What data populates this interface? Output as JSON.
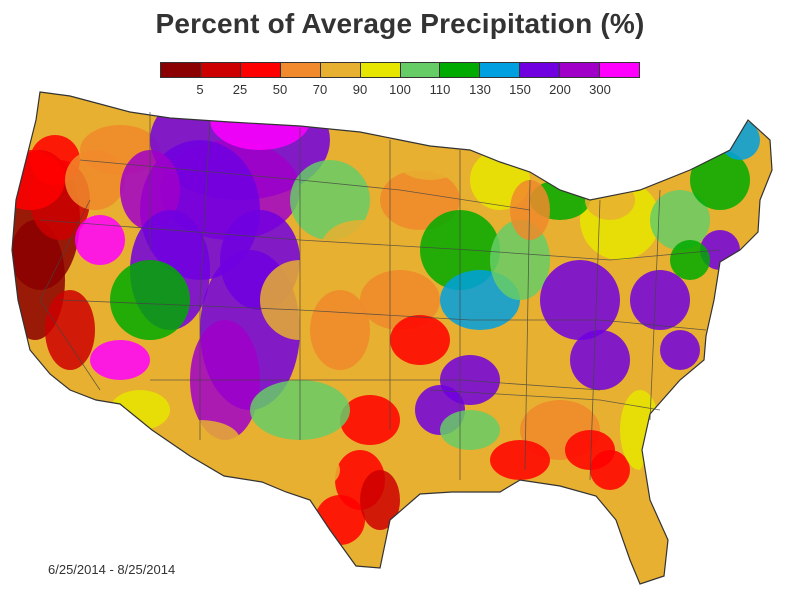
{
  "title": "Percent of Average Precipitation (%)",
  "legend": {
    "colors": [
      "#8b0000",
      "#cc0000",
      "#ff0000",
      "#f08a2c",
      "#e8b030",
      "#e6e600",
      "#66cc66",
      "#00aa00",
      "#00a0e0",
      "#7000e0",
      "#a000c8",
      "#ff00ff"
    ],
    "ticks": [
      "5",
      "25",
      "50",
      "70",
      "90",
      "100",
      "110",
      "130",
      "150",
      "200",
      "300"
    ]
  },
  "date_range": "6/25/2014 - 8/25/2014"
}
